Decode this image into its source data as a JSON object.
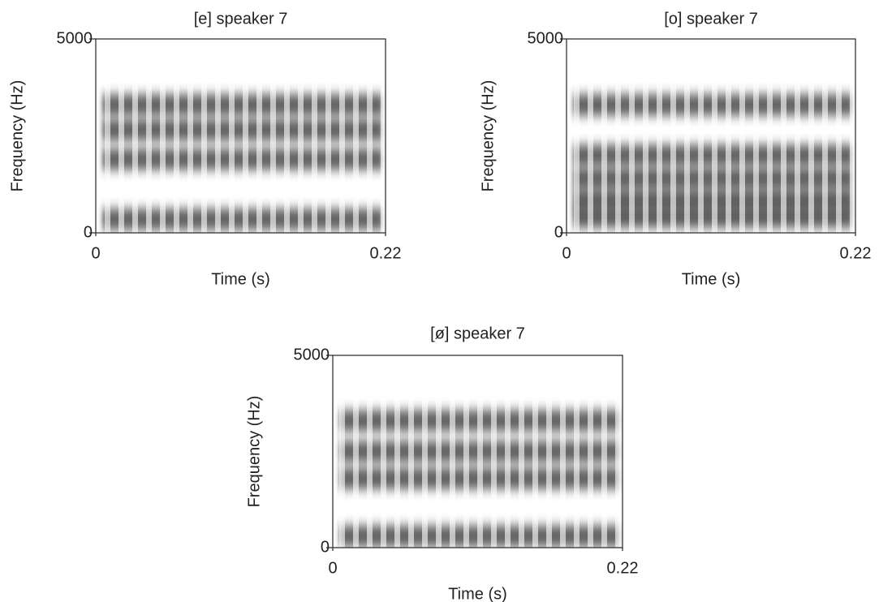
{
  "chart_data": [
    {
      "type": "spectrogram",
      "title": "[e] speaker 7",
      "xlabel": "Time (s)",
      "ylabel": "Frequency (Hz)",
      "xlim": [
        0,
        0.22
      ],
      "ylim": [
        0,
        5000
      ],
      "xticks": [
        0,
        0.22
      ],
      "yticks": [
        0,
        5000
      ],
      "formants": [
        350,
        1900,
        2650,
        3300
      ]
    },
    {
      "type": "spectrogram",
      "title": "[o] speaker 7",
      "xlabel": "Time (s)",
      "ylabel": "Frequency (Hz)",
      "xlim": [
        0,
        0.22
      ],
      "ylim": [
        0,
        5000
      ],
      "xticks": [
        0,
        0.22
      ],
      "yticks": [
        0,
        5000
      ],
      "formants": [
        400,
        850,
        1400,
        2000,
        3300
      ]
    },
    {
      "type": "spectrogram",
      "title": "[ø] speaker 7",
      "xlabel": "Time (s)",
      "ylabel": "Frequency (Hz)",
      "xlim": [
        0,
        0.22
      ],
      "ylim": [
        0,
        5000
      ],
      "xticks": [
        0,
        0.22
      ],
      "yticks": [
        0,
        5000
      ],
      "formants": [
        300,
        1800,
        2500,
        3300
      ]
    }
  ]
}
